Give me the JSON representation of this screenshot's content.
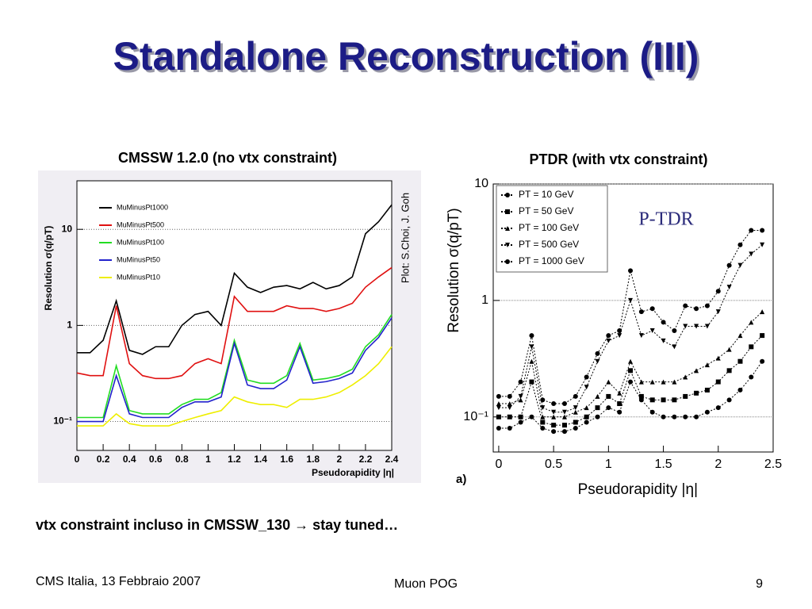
{
  "slide": {
    "title": "Standalone Reconstruction (III)",
    "note": "vtx constraint incluso in CMSSW_130 → stay tuned…",
    "footer_left": "CMS Italia, 13 Febbraio 2007",
    "footer_center": "Muon POG",
    "footer_right": "9"
  },
  "chart_data": [
    {
      "type": "line",
      "title": "CMSSW 1.2.0 (no vtx constraint)",
      "x_label": "Pseudorapidity |η|",
      "y_label": "Resolution σ(q/pT)",
      "annotation": "Plot: S.Choi, J. Goh",
      "log_y": true,
      "grid": true,
      "legend": "upper left",
      "xlim": [
        0,
        2.4
      ],
      "xticks": [
        0,
        0.2,
        0.4,
        0.6,
        0.8,
        1,
        1.2,
        1.4,
        1.6,
        1.8,
        2,
        2.2,
        2.4
      ],
      "ylim": [
        0.05,
        32
      ],
      "yticks": [
        {
          "value": 0.1,
          "label": "10⁻¹"
        },
        1,
        10
      ],
      "x": [
        0,
        0.1,
        0.2,
        0.3,
        0.4,
        0.5,
        0.6,
        0.7,
        0.8,
        0.9,
        1,
        1.1,
        1.2,
        1.3,
        1.4,
        1.5,
        1.6,
        1.7,
        1.8,
        1.9,
        2,
        2.1,
        2.2,
        2.3,
        2.4
      ],
      "series": [
        {
          "name": "MuMinusPt1000",
          "color": "#000000",
          "values": [
            0.52,
            0.52,
            0.7,
            1.8,
            0.55,
            0.5,
            0.6,
            0.6,
            1.0,
            1.3,
            1.4,
            1.0,
            3.5,
            2.5,
            2.2,
            2.5,
            2.6,
            2.4,
            2.8,
            2.4,
            2.6,
            3.2,
            9,
            12,
            18
          ]
        },
        {
          "name": "MuMinusPt500",
          "color": "#e01010",
          "values": [
            0.32,
            0.3,
            0.3,
            1.6,
            0.4,
            0.3,
            0.28,
            0.28,
            0.3,
            0.4,
            0.45,
            0.4,
            2.0,
            1.4,
            1.4,
            1.4,
            1.6,
            1.5,
            1.5,
            1.4,
            1.5,
            1.7,
            2.5,
            3.2,
            4.0
          ]
        },
        {
          "name": "MuMinusPt100",
          "color": "#22dd22",
          "values": [
            0.11,
            0.11,
            0.11,
            0.38,
            0.13,
            0.12,
            0.12,
            0.12,
            0.15,
            0.17,
            0.17,
            0.2,
            0.7,
            0.27,
            0.25,
            0.25,
            0.3,
            0.65,
            0.27,
            0.28,
            0.3,
            0.35,
            0.6,
            0.8,
            1.3
          ]
        },
        {
          "name": "MuMinusPt50",
          "color": "#2222cc",
          "values": [
            0.1,
            0.1,
            0.1,
            0.3,
            0.12,
            0.11,
            0.11,
            0.11,
            0.14,
            0.16,
            0.16,
            0.18,
            0.65,
            0.24,
            0.22,
            0.22,
            0.27,
            0.6,
            0.25,
            0.26,
            0.28,
            0.32,
            0.55,
            0.75,
            1.2
          ]
        },
        {
          "name": "MuMinusPt10",
          "color": "#eeee00",
          "values": [
            0.09,
            0.09,
            0.09,
            0.12,
            0.095,
            0.09,
            0.09,
            0.09,
            0.1,
            0.11,
            0.12,
            0.13,
            0.18,
            0.16,
            0.15,
            0.15,
            0.14,
            0.17,
            0.17,
            0.18,
            0.2,
            0.24,
            0.3,
            0.4,
            0.6
          ]
        }
      ]
    },
    {
      "type": "line",
      "title": "PTDR (with vtx constraint)",
      "x_label": "Pseudorapidity |η|",
      "y_label": "Resolution σ(q/pT)",
      "annotation": "P-TDR",
      "panel_label": "a)",
      "log_y": true,
      "grid": true,
      "legend": "upper left",
      "xlim": [
        -0.05,
        2.5
      ],
      "xticks": [
        0,
        0.5,
        1,
        1.5,
        2,
        2.5
      ],
      "ylim": [
        0.05,
        10
      ],
      "yticks": [
        {
          "value": 0.1,
          "label": "10⁻¹"
        },
        1,
        10
      ],
      "x": [
        0,
        0.1,
        0.2,
        0.3,
        0.4,
        0.5,
        0.6,
        0.7,
        0.8,
        0.9,
        1,
        1.1,
        1.2,
        1.3,
        1.4,
        1.5,
        1.6,
        1.7,
        1.8,
        1.9,
        2,
        2.1,
        2.2,
        2.3,
        2.4
      ],
      "series": [
        {
          "name": "PT = 10 GeV",
          "color": "#000000",
          "values": [
            0.08,
            0.08,
            0.09,
            0.1,
            0.08,
            0.075,
            0.075,
            0.08,
            0.09,
            0.1,
            0.12,
            0.11,
            0.2,
            0.14,
            0.11,
            0.1,
            0.1,
            0.1,
            0.1,
            0.11,
            0.12,
            0.14,
            0.17,
            0.22,
            0.3
          ]
        },
        {
          "name": "PT = 50 GeV",
          "color": "#000000",
          "values": [
            0.1,
            0.1,
            0.1,
            0.2,
            0.09,
            0.085,
            0.085,
            0.09,
            0.1,
            0.12,
            0.15,
            0.13,
            0.25,
            0.15,
            0.14,
            0.14,
            0.14,
            0.15,
            0.16,
            0.17,
            0.2,
            0.25,
            0.3,
            0.4,
            0.5
          ]
        },
        {
          "name": "PT = 100 GeV",
          "color": "#000000",
          "values": [
            0.13,
            0.13,
            0.14,
            0.3,
            0.1,
            0.1,
            0.1,
            0.11,
            0.12,
            0.15,
            0.2,
            0.16,
            0.3,
            0.2,
            0.2,
            0.2,
            0.2,
            0.22,
            0.25,
            0.28,
            0.32,
            0.38,
            0.5,
            0.65,
            0.8
          ]
        },
        {
          "name": "PT = 500 GeV",
          "color": "#000000",
          "values": [
            0.12,
            0.12,
            0.15,
            0.4,
            0.12,
            0.11,
            0.11,
            0.12,
            0.18,
            0.3,
            0.45,
            0.5,
            1.0,
            0.5,
            0.55,
            0.45,
            0.4,
            0.6,
            0.6,
            0.6,
            0.8,
            1.3,
            2.0,
            2.5,
            3.0
          ]
        },
        {
          "name": "PT = 1000 GeV",
          "color": "#000000",
          "values": [
            0.15,
            0.15,
            0.2,
            0.5,
            0.14,
            0.13,
            0.13,
            0.15,
            0.22,
            0.35,
            0.5,
            0.55,
            1.8,
            0.8,
            0.85,
            0.65,
            0.55,
            0.9,
            0.85,
            0.9,
            1.2,
            2.0,
            3.0,
            4.0,
            4.0
          ]
        }
      ]
    }
  ]
}
